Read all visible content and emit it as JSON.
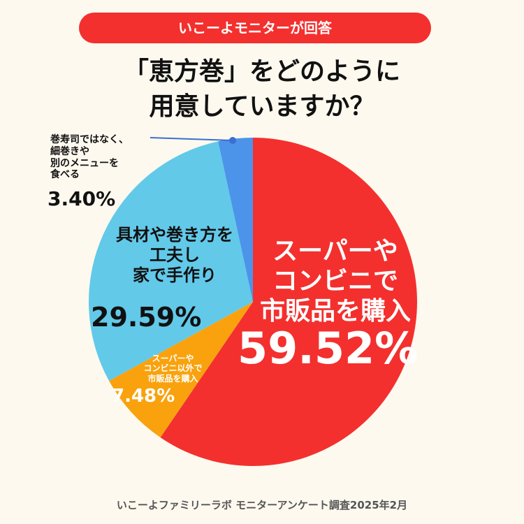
{
  "chart_data": {
    "type": "pie",
    "badge": "いこーよモニターが回答",
    "title": "「恵方巻」をどのように\n用意していますか？",
    "categories": [
      "スーパーや\nコンビニで\n市販品を購入",
      "スーパーや\nコンビニ以外で\n市販品を購入",
      "具材や巻き方を\n工夫し\n家で手作り",
      "巻寿司ではなく、\n細巻きや\n別のメニューを\n食べる"
    ],
    "values": [
      59.52,
      7.48,
      29.59,
      3.4
    ],
    "value_labels": [
      "59.52%",
      "7.48%",
      "29.59%",
      "3.40%"
    ],
    "colors": [
      "#f3302e",
      "#f9a20e",
      "#62c9e9",
      "#4c93ea"
    ],
    "source": "いこーよファミリーラボ モニターアンケート調査2025年2月"
  }
}
